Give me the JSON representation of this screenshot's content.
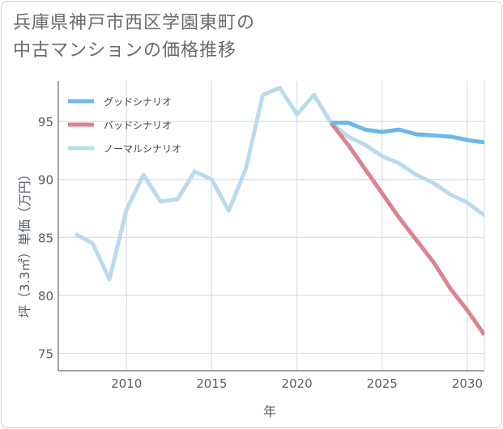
{
  "title_line1": "兵庫県神戸市西区学園東町の",
  "title_line2": "中古マンションの価格推移",
  "chart_data": {
    "type": "line",
    "title": "兵庫県神戸市西区学園東町の中古マンションの価格推移",
    "xlabel": "年",
    "ylabel": "坪（3.3㎡）単価（万円）",
    "xlim": [
      2006,
      2031
    ],
    "ylim": [
      73.5,
      98.5
    ],
    "xticks": [
      2010,
      2015,
      2020,
      2025,
      2030
    ],
    "yticks": [
      75,
      80,
      85,
      90,
      95
    ],
    "grid": true,
    "legend_position": "top-left",
    "series": [
      {
        "name": "グッドシナリオ",
        "color": "#6fb7e8",
        "x": [
          2022,
          2023,
          2024,
          2025,
          2026,
          2027,
          2028,
          2029,
          2030,
          2031
        ],
        "values": [
          94.9,
          94.9,
          94.3,
          94.1,
          94.3,
          93.9,
          93.8,
          93.7,
          93.4,
          93.2
        ]
      },
      {
        "name": "バッドシナリオ",
        "color": "#d9848f",
        "x": [
          2022,
          2023,
          2024,
          2025,
          2026,
          2027,
          2028,
          2029,
          2030,
          2031
        ],
        "values": [
          94.9,
          93.0,
          90.9,
          88.8,
          86.7,
          84.8,
          82.9,
          80.6,
          78.7,
          76.6
        ]
      },
      {
        "name": "ノーマルシナリオ",
        "color": "#b9dbec",
        "x": [
          2007,
          2008,
          2009,
          2010,
          2011,
          2012,
          2013,
          2014,
          2015,
          2016,
          2017,
          2018,
          2019,
          2020,
          2021,
          2022,
          2023,
          2024,
          2025,
          2026,
          2027,
          2028,
          2029,
          2030,
          2031
        ],
        "values": [
          85.3,
          84.5,
          81.4,
          87.4,
          90.4,
          88.1,
          88.3,
          90.7,
          90.0,
          87.3,
          90.9,
          97.3,
          97.9,
          95.6,
          97.3,
          94.9,
          93.7,
          93.0,
          92.0,
          91.4,
          90.4,
          89.7,
          88.7,
          88.0,
          86.9
        ]
      }
    ]
  }
}
